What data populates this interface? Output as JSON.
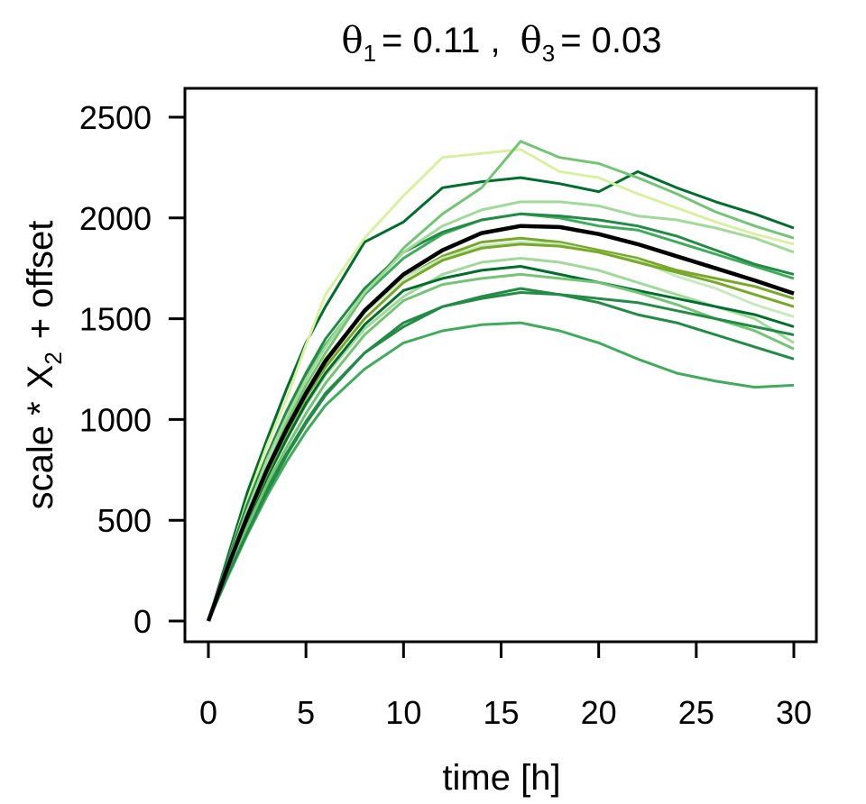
{
  "chart_data": {
    "type": "line",
    "title": {
      "theta1_symbol": "θ",
      "theta1_sub": "1",
      "theta1_value": "= 0.11 ,",
      "theta3_symbol": "θ",
      "theta3_sub": "3",
      "theta3_value": "= 0.03"
    },
    "xlabel": "time [h]",
    "ylabel": {
      "prefix": "scale *",
      "var": "X",
      "sub": "2",
      "suffix": "+ offset"
    },
    "xlim": [
      0,
      30
    ],
    "ylim": [
      0,
      2500
    ],
    "xticks": [
      0,
      5,
      10,
      15,
      20,
      25,
      30
    ],
    "yticks": [
      0,
      500,
      1000,
      1500,
      2000,
      2500
    ],
    "grid": false,
    "x": [
      0,
      1,
      2,
      3,
      4,
      5,
      6,
      8,
      10,
      12,
      14,
      16,
      18,
      20,
      22,
      24,
      26,
      28,
      30
    ],
    "mean_curve": {
      "color": "#000000",
      "values": [
        0,
        270,
        520,
        750,
        950,
        1130,
        1290,
        1540,
        1720,
        1840,
        1925,
        1960,
        1955,
        1920,
        1870,
        1810,
        1750,
        1690,
        1625
      ]
    },
    "series": [
      {
        "color": "#006d2c",
        "values": [
          0,
          320,
          640,
          900,
          1150,
          1380,
          1560,
          1880,
          1980,
          2150,
          2180,
          2200,
          2170,
          2130,
          2230,
          2150,
          2080,
          2020,
          1950
        ]
      },
      {
        "color": "#d9f0a3",
        "values": [
          0,
          300,
          600,
          870,
          1100,
          1370,
          1620,
          1900,
          2110,
          2300,
          2320,
          2340,
          2230,
          2200,
          2120,
          2050,
          1980,
          1920,
          1870
        ]
      },
      {
        "color": "#74c476",
        "values": [
          0,
          260,
          520,
          760,
          980,
          1170,
          1330,
          1620,
          1850,
          2020,
          2150,
          2380,
          2300,
          2270,
          2200,
          2120,
          2030,
          1960,
          1900
        ]
      },
      {
        "color": "#41ab5d",
        "values": [
          0,
          220,
          430,
          620,
          790,
          940,
          1070,
          1250,
          1380,
          1440,
          1470,
          1480,
          1440,
          1380,
          1300,
          1230,
          1190,
          1160,
          1170
        ]
      },
      {
        "color": "#238b45",
        "values": [
          0,
          240,
          460,
          660,
          830,
          990,
          1130,
          1330,
          1460,
          1560,
          1610,
          1650,
          1620,
          1580,
          1520,
          1480,
          1420,
          1360,
          1300
        ]
      },
      {
        "color": "#78a82a",
        "values": [
          0,
          280,
          530,
          760,
          960,
          1140,
          1300,
          1540,
          1700,
          1810,
          1880,
          1900,
          1880,
          1840,
          1800,
          1740,
          1700,
          1660,
          1600
        ]
      },
      {
        "color": "#a1d99b",
        "values": [
          0,
          260,
          500,
          720,
          910,
          1070,
          1220,
          1450,
          1610,
          1720,
          1780,
          1800,
          1780,
          1740,
          1680,
          1620,
          1560,
          1500,
          1380
        ]
      },
      {
        "color": "#006d2c",
        "values": [
          0,
          250,
          490,
          710,
          900,
          1080,
          1230,
          1470,
          1640,
          1700,
          1740,
          1760,
          1720,
          1680,
          1640,
          1600,
          1560,
          1520,
          1460
        ]
      },
      {
        "color": "#c7e9c0",
        "values": [
          0,
          270,
          520,
          740,
          950,
          1130,
          1280,
          1530,
          1700,
          1800,
          1860,
          1880,
          1870,
          1830,
          1790,
          1710,
          1650,
          1570,
          1510
        ]
      },
      {
        "color": "#41ab5d",
        "values": [
          0,
          290,
          560,
          800,
          1020,
          1210,
          1370,
          1620,
          1800,
          1920,
          1990,
          2020,
          2000,
          1960,
          1940,
          1880,
          1820,
          1760,
          1700
        ]
      },
      {
        "color": "#74c476",
        "values": [
          0,
          250,
          470,
          680,
          860,
          1030,
          1180,
          1420,
          1590,
          1670,
          1700,
          1720,
          1700,
          1680,
          1630,
          1570,
          1500,
          1440,
          1350
        ]
      },
      {
        "color": "#238b45",
        "values": [
          0,
          300,
          580,
          820,
          1040,
          1230,
          1400,
          1650,
          1830,
          1930,
          1990,
          2020,
          2010,
          1990,
          1960,
          1910,
          1840,
          1770,
          1720
        ]
      },
      {
        "color": "#a1d99b",
        "values": [
          0,
          280,
          550,
          800,
          1010,
          1200,
          1360,
          1630,
          1830,
          1960,
          2040,
          2080,
          2080,
          2060,
          2010,
          1990,
          1950,
          1900,
          1830
        ]
      },
      {
        "color": "#238b45",
        "values": [
          0,
          230,
          440,
          640,
          820,
          980,
          1120,
          1330,
          1480,
          1560,
          1600,
          1630,
          1620,
          1600,
          1580,
          1540,
          1500,
          1460,
          1420
        ]
      },
      {
        "color": "#78a82a",
        "values": [
          0,
          270,
          510,
          730,
          930,
          1110,
          1260,
          1500,
          1680,
          1790,
          1850,
          1870,
          1860,
          1830,
          1780,
          1730,
          1680,
          1620,
          1560
        ]
      }
    ]
  }
}
